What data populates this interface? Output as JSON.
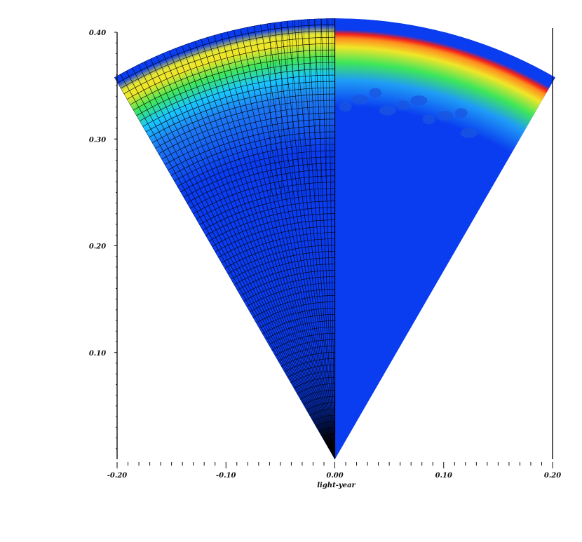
{
  "chart_data": {
    "type": "heatmap",
    "title": "",
    "xlabel": "light-year",
    "ylabel": "",
    "xlim": [
      -0.2,
      0.2
    ],
    "ylim": [
      0.0,
      0.4
    ],
    "x_ticks": [
      {
        "value": -0.2,
        "label": "-0.20"
      },
      {
        "value": -0.1,
        "label": "-0.10"
      },
      {
        "value": 0.0,
        "label": "0.00"
      },
      {
        "value": 0.1,
        "label": "0.10"
      },
      {
        "value": 0.2,
        "label": "0.20"
      }
    ],
    "y_ticks": [
      {
        "value": 0.1,
        "label": "0.10"
      },
      {
        "value": 0.2,
        "label": "0.20"
      },
      {
        "value": 0.3,
        "label": "0.30"
      },
      {
        "value": 0.4,
        "label": "0.40"
      }
    ],
    "wedge": {
      "apex": [
        0.0,
        0.0
      ],
      "radius": 0.405,
      "half_angle_deg": 30
    },
    "left_half": {
      "description_visible": "mesh grid overlay on colored cells",
      "mesh_overlay": true,
      "shell_inner_radius": 0.33,
      "shell_outer_radius": 0.385
    },
    "right_half": {
      "mesh_overlay": false,
      "shell_inner_radius": 0.34,
      "shell_outer_radius": 0.38,
      "shell_edge_angle_deg": 30
    },
    "colors": {
      "background_fill": "#0a3cf0",
      "deep_blue": "#0026d6",
      "cyan": "#19c8ff",
      "green": "#3ee65a",
      "yellow": "#f0e628",
      "orange": "#ff8c1e",
      "red": "#f01e1e",
      "mesh_line": "#000000"
    }
  }
}
